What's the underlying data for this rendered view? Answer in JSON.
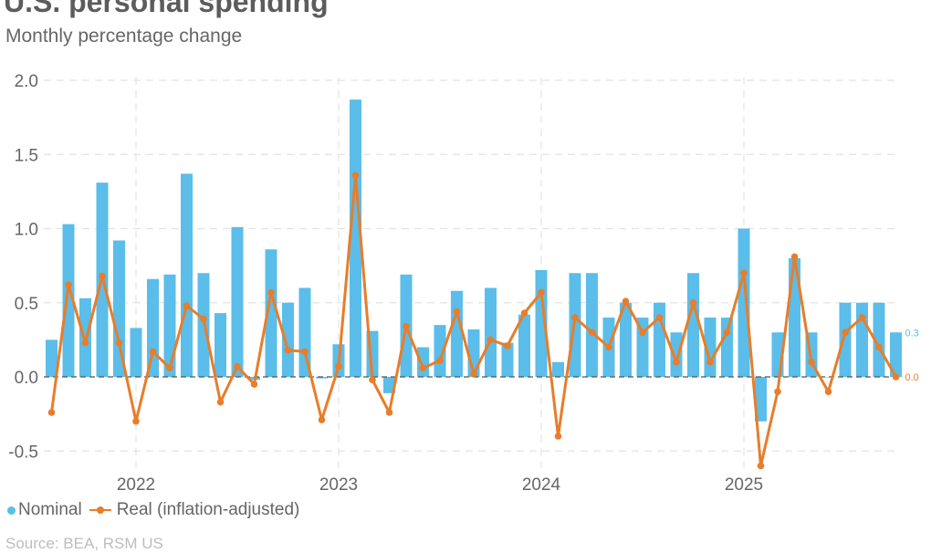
{
  "header": {
    "title": "U.S. personal spending",
    "subtitle": "Monthly percentage change"
  },
  "legend": {
    "nominal": "Nominal",
    "real": "Real (inflation-adjusted)"
  },
  "source": "Source: BEA, RSM US",
  "chart_data": {
    "type": "bar+line",
    "title": "U.S. personal spending",
    "subtitle": "Monthly percentage change",
    "xlabel": "",
    "ylabel": "",
    "ylim": [
      -0.6,
      2.0
    ],
    "yticks": [
      "2.0",
      "1.5",
      "1.0",
      "0.5",
      "0.0",
      "-0.5"
    ],
    "ytick_values": [
      2.0,
      1.5,
      1.0,
      0.5,
      0.0,
      -0.5
    ],
    "xticks": [
      "2022",
      "2023",
      "2024",
      "2025"
    ],
    "xtick_month_index": [
      5,
      17,
      29,
      41
    ],
    "grid": true,
    "legend_placement": "bottom-left",
    "months": [
      "2021-08",
      "2021-09",
      "2021-10",
      "2021-11",
      "2021-12",
      "2022-01",
      "2022-02",
      "2022-03",
      "2022-04",
      "2022-05",
      "2022-06",
      "2022-07",
      "2022-08",
      "2022-09",
      "2022-10",
      "2022-11",
      "2022-12",
      "2023-01",
      "2023-02",
      "2023-03",
      "2023-04",
      "2023-05",
      "2023-06",
      "2023-07",
      "2023-08",
      "2023-09",
      "2023-10",
      "2023-11",
      "2023-12",
      "2024-01",
      "2024-02",
      "2024-03",
      "2024-04",
      "2024-05",
      "2024-06",
      "2024-07",
      "2024-08",
      "2024-09",
      "2024-10",
      "2024-11",
      "2024-12",
      "2025-01",
      "2025-02",
      "2025-03",
      "2025-04",
      "2025-05",
      "2025-06",
      "2025-07",
      "2025-08",
      "2025-09",
      "2025-10"
    ],
    "series": [
      {
        "name": "Nominal",
        "type": "bar",
        "color": "#5bbde9",
        "values": [
          0.25,
          1.03,
          0.53,
          1.31,
          0.92,
          0.33,
          0.66,
          0.69,
          1.37,
          0.7,
          0.43,
          1.01,
          -0.02,
          0.86,
          0.5,
          0.6,
          -0.01,
          0.22,
          1.87,
          0.31,
          -0.11,
          0.69,
          0.2,
          0.35,
          0.58,
          0.32,
          0.6,
          0.23,
          0.42,
          0.72,
          0.1,
          0.7,
          0.7,
          0.4,
          0.5,
          0.4,
          0.5,
          0.3,
          0.7,
          0.4,
          0.4,
          1.0,
          -0.3,
          0.3,
          0.8,
          0.3,
          0.0,
          0.5,
          0.5,
          0.5,
          0.3
        ],
        "end_label": "0.3"
      },
      {
        "name": "Real (inflation-adjusted)",
        "type": "line",
        "color": "#e87d2a",
        "values": [
          -0.24,
          0.62,
          0.23,
          0.68,
          0.23,
          -0.3,
          0.17,
          0.06,
          0.48,
          0.39,
          -0.17,
          0.07,
          -0.05,
          0.57,
          0.18,
          0.17,
          -0.29,
          0.07,
          1.36,
          -0.02,
          -0.24,
          0.34,
          0.06,
          0.11,
          0.44,
          0.02,
          0.25,
          0.21,
          0.43,
          0.57,
          -0.4,
          0.4,
          0.3,
          0.2,
          0.51,
          0.3,
          0.4,
          0.1,
          0.5,
          0.1,
          0.3,
          0.7,
          -0.6,
          -0.1,
          0.81,
          0.1,
          -0.1,
          0.3,
          0.4,
          0.2,
          0.0
        ],
        "end_label": "0.0"
      }
    ]
  }
}
